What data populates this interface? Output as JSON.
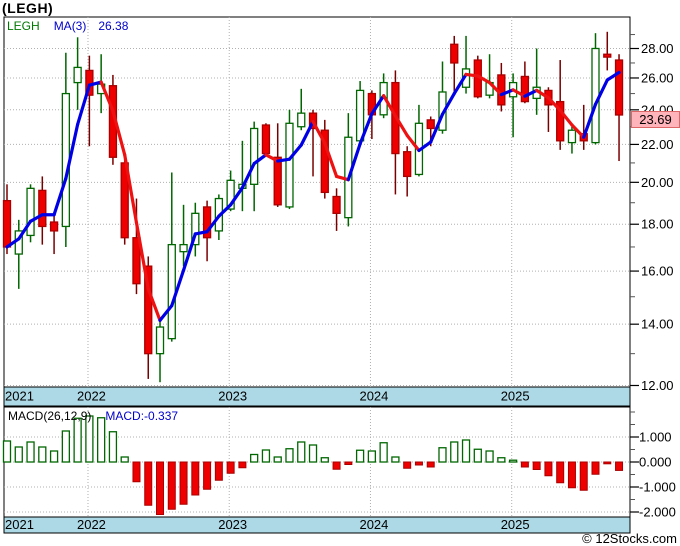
{
  "title": "(LEGH)",
  "legend": {
    "symbol": "LEGH",
    "ma_label": "MA(3)",
    "ma_value": "26.38"
  },
  "macd_legend": {
    "label": "MACD(26,12,9)",
    "value": "MACD:-0.337"
  },
  "price_label": "23.69",
  "copyright": "© 12Stocks.com",
  "colors": {
    "up": "#006600",
    "down_fill": "#ee0000",
    "down_border": "#aa0000",
    "down_wick": "#7a0000",
    "ma_up": "#0000e6",
    "ma_down": "#ee1111",
    "axis_band": "#add8e6",
    "grid": "#b0b0b0",
    "border": "#000000",
    "price_label_bg": "#ffb3ba",
    "price_label_border": "#dd6666",
    "legend_symbol": "#007700",
    "legend_value": "#0000cc",
    "text": "#000000"
  },
  "chart_data": [
    {
      "type": "candlestick",
      "title": "LEGH monthly candlesticks with MA(3)",
      "y_scale": "log",
      "ylim": [
        11.9,
        30.3
      ],
      "y_ticks": [
        {
          "v": 28,
          "label": "28.00"
        },
        {
          "v": 26,
          "label": "26.00"
        },
        {
          "v": 24,
          "label": "24.00"
        },
        {
          "v": 22,
          "label": "22.00"
        },
        {
          "v": 20,
          "label": "20.00"
        },
        {
          "v": 18,
          "label": "18.00"
        },
        {
          "v": 16,
          "label": "16.00"
        },
        {
          "v": 14,
          "label": "14.00"
        },
        {
          "v": 12,
          "label": "12.00"
        }
      ],
      "y_minor_ticks": [
        29,
        27,
        25,
        23,
        21,
        19,
        17,
        15,
        13
      ],
      "x_axis_years": [
        {
          "label": "2021",
          "start_index": 0
        },
        {
          "label": "2022",
          "start_index": 7
        },
        {
          "label": "2023",
          "start_index": 19
        },
        {
          "label": "2024",
          "start_index": 31
        },
        {
          "label": "2025",
          "start_index": 43
        }
      ],
      "ohlc_columns": [
        "open",
        "high",
        "low",
        "close"
      ],
      "candles": [
        [
          19.1,
          19.9,
          16.7,
          17.0
        ],
        [
          16.7,
          18.2,
          15.3,
          17.7
        ],
        [
          17.5,
          19.9,
          17.2,
          19.7
        ],
        [
          19.6,
          20.3,
          17.1,
          17.9
        ],
        [
          18.1,
          18.4,
          16.7,
          17.7
        ],
        [
          17.9,
          27.7,
          17.0,
          25.0
        ],
        [
          25.7,
          28.8,
          24.0,
          26.7
        ],
        [
          26.5,
          27.5,
          21.9,
          24.9
        ],
        [
          25.0,
          27.6,
          23.8,
          25.6
        ],
        [
          25.5,
          26.2,
          20.9,
          21.3
        ],
        [
          21.0,
          21.2,
          17.1,
          17.4
        ],
        [
          17.4,
          19.2,
          15.1,
          15.5
        ],
        [
          16.2,
          16.6,
          12.2,
          13.0
        ],
        [
          13.0,
          14.2,
          12.1,
          13.9
        ],
        [
          13.5,
          20.5,
          13.4,
          17.1
        ],
        [
          16.8,
          18.9,
          16.2,
          17.1
        ],
        [
          17.1,
          19.0,
          16.6,
          18.5
        ],
        [
          18.8,
          19.1,
          16.4,
          17.4
        ],
        [
          17.7,
          19.4,
          17.3,
          19.2
        ],
        [
          18.7,
          20.6,
          18.6,
          20.1
        ],
        [
          19.7,
          22.2,
          18.6,
          19.9
        ],
        [
          19.9,
          23.3,
          18.6,
          22.9
        ],
        [
          23.1,
          23.2,
          21.4,
          21.5
        ],
        [
          21.3,
          23.2,
          18.8,
          18.9
        ],
        [
          18.8,
          24.0,
          18.7,
          23.2
        ],
        [
          23.0,
          25.3,
          22.8,
          23.8
        ],
        [
          23.8,
          24.0,
          20.3,
          22.9
        ],
        [
          22.8,
          23.4,
          19.2,
          19.5
        ],
        [
          19.3,
          19.7,
          17.7,
          18.5
        ],
        [
          18.3,
          23.8,
          17.9,
          22.4
        ],
        [
          22.2,
          25.8,
          22.1,
          25.2
        ],
        [
          25.0,
          25.2,
          22.3,
          23.7
        ],
        [
          23.7,
          26.3,
          23.5,
          25.7
        ],
        [
          25.7,
          26.5,
          19.4,
          21.5
        ],
        [
          21.6,
          21.9,
          19.3,
          20.3
        ],
        [
          20.4,
          24.3,
          20.3,
          23.2
        ],
        [
          23.4,
          23.6,
          21.9,
          22.9
        ],
        [
          22.8,
          27.1,
          22.6,
          25.1
        ],
        [
          28.3,
          28.9,
          24.9,
          27.0
        ],
        [
          25.4,
          28.9,
          25.0,
          26.6
        ],
        [
          27.2,
          27.5,
          24.7,
          24.8
        ],
        [
          24.9,
          27.6,
          24.7,
          25.7
        ],
        [
          26.2,
          27.0,
          23.9,
          24.3
        ],
        [
          24.8,
          26.3,
          22.4,
          25.7
        ],
        [
          26.1,
          27.1,
          24.4,
          24.5
        ],
        [
          24.7,
          28.0,
          23.7,
          25.4
        ],
        [
          25.2,
          25.4,
          22.7,
          24.3
        ],
        [
          24.5,
          27.2,
          21.7,
          22.2
        ],
        [
          22.1,
          23.0,
          21.5,
          22.8
        ],
        [
          22.6,
          24.3,
          21.7,
          22.2
        ],
        [
          22.1,
          29.1,
          22.0,
          28.0
        ],
        [
          27.6,
          29.2,
          26.5,
          27.4
        ],
        [
          27.2,
          27.6,
          21.1,
          23.69
        ]
      ],
      "ma_period": 3,
      "ma_last_value": 26.38,
      "last_close": 23.69
    },
    {
      "type": "bar",
      "title": "MACD(26,12,9) histogram",
      "ylim": [
        2.2,
        -2.4
      ],
      "y_ticks": [
        {
          "v": 1,
          "label": "1.000"
        },
        {
          "v": 0,
          "label": "0.000"
        },
        {
          "v": -1,
          "label": "-1.000"
        },
        {
          "v": -2,
          "label": "-2.000"
        }
      ],
      "y_minor_ticks": [
        2,
        1.5,
        0.5,
        -0.5,
        -1.5
      ],
      "last_value": -0.337,
      "values": [
        0.84,
        0.6,
        0.8,
        0.6,
        0.44,
        1.24,
        1.75,
        1.84,
        1.77,
        1.21,
        0.2,
        -0.79,
        -1.73,
        -2.1,
        -1.89,
        -1.69,
        -1.32,
        -1.09,
        -0.73,
        -0.45,
        -0.23,
        0.3,
        0.48,
        0.2,
        0.53,
        0.8,
        0.68,
        0.17,
        -0.29,
        -0.1,
        0.47,
        0.44,
        0.77,
        0.2,
        -0.25,
        -0.12,
        -0.2,
        0.57,
        0.8,
        0.88,
        0.51,
        0.44,
        0.17,
        0.02,
        -0.2,
        -0.3,
        -0.55,
        -0.83,
        -1.03,
        -1.13,
        -0.49,
        -0.05,
        -0.337
      ]
    }
  ]
}
